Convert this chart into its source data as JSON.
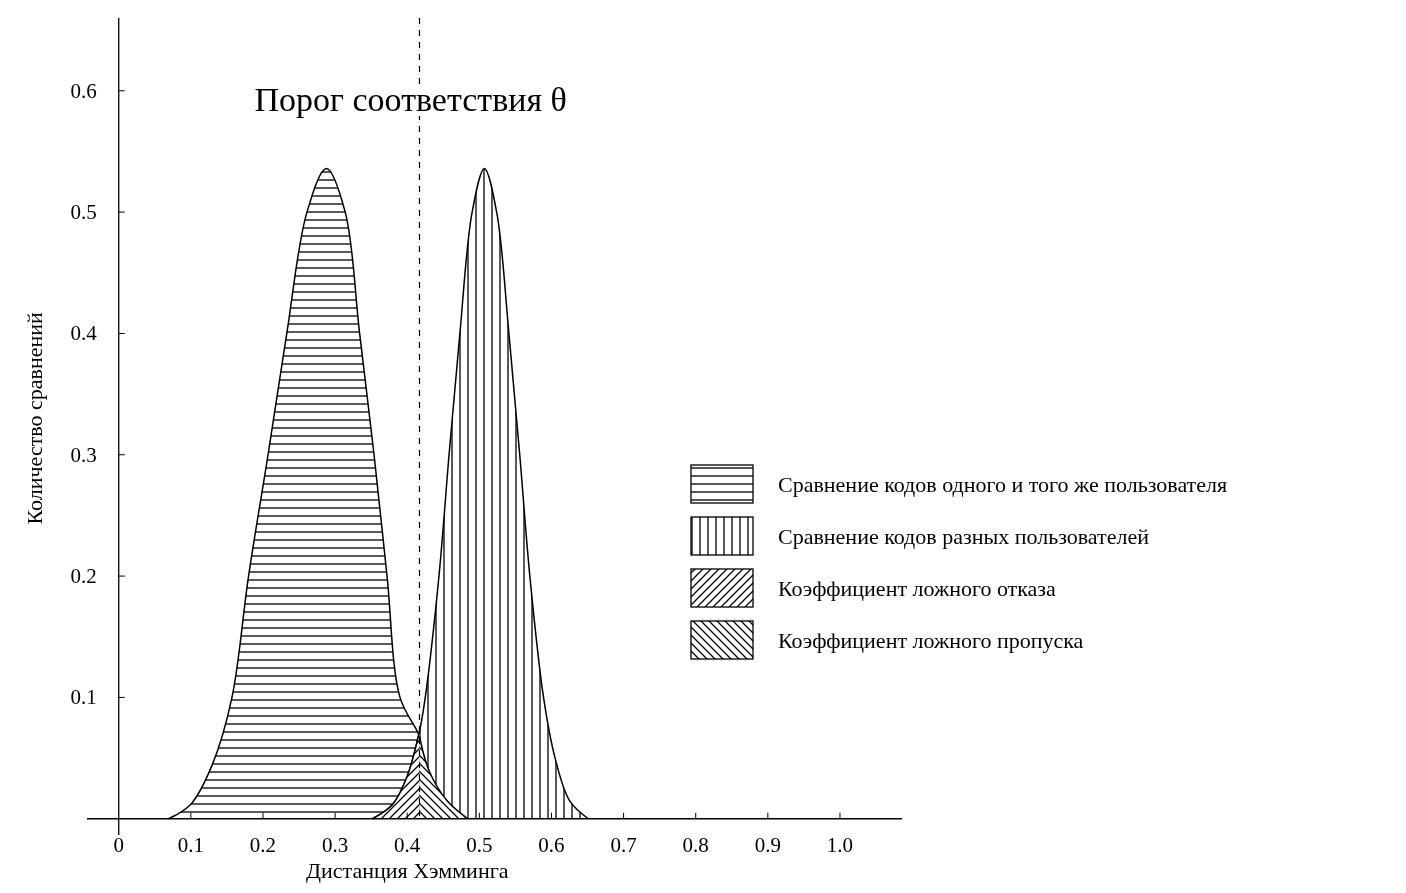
{
  "chart_data": {
    "type": "area",
    "xlabel": "Дистанция Хэмминга",
    "ylabel": "Количество сравнений",
    "xlim": [
      -0.044,
      1.086
    ],
    "ylim": [
      -0.02,
      0.66
    ],
    "xticks": [
      {
        "value": 0,
        "label": "0"
      },
      0.1,
      0.2,
      0.3,
      0.4,
      0.5,
      0.6,
      0.7,
      0.8,
      0.9,
      {
        "value": 1,
        "label": "1.0"
      }
    ],
    "yticks": [
      0.1,
      0.2,
      0.3,
      0.4,
      0.5,
      0.6
    ],
    "legend": "right",
    "grid": false,
    "ref_lines": [
      {
        "axis": "x",
        "value": 0.417,
        "label": "Порог соответствия  θ",
        "line_style": "dashed",
        "color": "#000000"
      }
    ],
    "series": [
      {
        "name": "Сравнение кодов одного и того же пользователя",
        "color": "#000000",
        "x": [
          0.069,
          0.1,
          0.13,
          0.157,
          0.18,
          0.207,
          0.233,
          0.261,
          0.288,
          0.314,
          0.334,
          0.354,
          0.372,
          0.39,
          0.417,
          0.43,
          0.455,
          0.484
        ],
        "values": [
          0,
          0.012,
          0.045,
          0.1,
          0.2,
          0.3,
          0.4,
          0.5,
          0.536,
          0.5,
          0.4,
          0.3,
          0.2,
          0.1,
          0.068,
          0.04,
          0.015,
          0
        ]
      },
      {
        "name": "Сравнение кодов разных пользователей",
        "color": "#000000",
        "x": [
          0.352,
          0.38,
          0.4,
          0.417,
          0.425,
          0.444,
          0.458,
          0.473,
          0.49,
          0.507,
          0.524,
          0.541,
          0.556,
          0.57,
          0.589,
          0.605,
          0.625,
          0.651
        ],
        "values": [
          0,
          0.012,
          0.035,
          0.072,
          0.1,
          0.2,
          0.3,
          0.4,
          0.5,
          0.536,
          0.5,
          0.4,
          0.3,
          0.2,
          0.1,
          0.05,
          0.015,
          0
        ]
      },
      {
        "name": "Коэффициент ложного отказа",
        "color": "#000000",
        "x": [
          0.352,
          0.38,
          0.4,
          0.417
        ],
        "values": [
          0,
          0.012,
          0.035,
          0.072
        ]
      },
      {
        "name": "Коэффициент ложного пропуска",
        "color": "#000000",
        "x": [
          0.417,
          0.43,
          0.455,
          0.484
        ],
        "values": [
          0.068,
          0.04,
          0.015,
          0
        ]
      }
    ]
  }
}
